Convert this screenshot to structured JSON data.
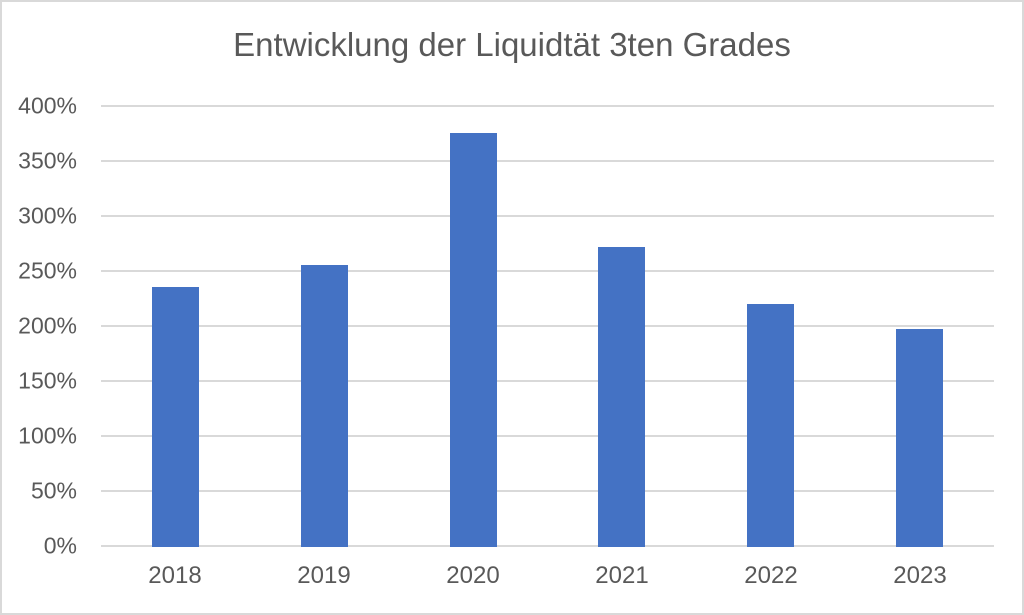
{
  "chart_data": {
    "type": "bar",
    "title": "Entwicklung der Liquidtät 3ten Grades",
    "categories": [
      "2018",
      "2019",
      "2020",
      "2021",
      "2022",
      "2023"
    ],
    "values": [
      235,
      255,
      375,
      272,
      220,
      197
    ],
    "value_unit": "%",
    "xlabel": "",
    "ylabel": "",
    "ylim": [
      0,
      400
    ],
    "ytick_step": 50,
    "ytick_labels": [
      "0%",
      "50%",
      "100%",
      "150%",
      "200%",
      "250%",
      "300%",
      "350%",
      "400%"
    ],
    "grid": true,
    "legend": false,
    "colors": {
      "bar": "#4472C4",
      "gridline": "#D9D9D9",
      "axis_text": "#595959",
      "title_text": "#595959",
      "chart_border": "#D9D9D9",
      "background": "#FFFFFF"
    }
  }
}
